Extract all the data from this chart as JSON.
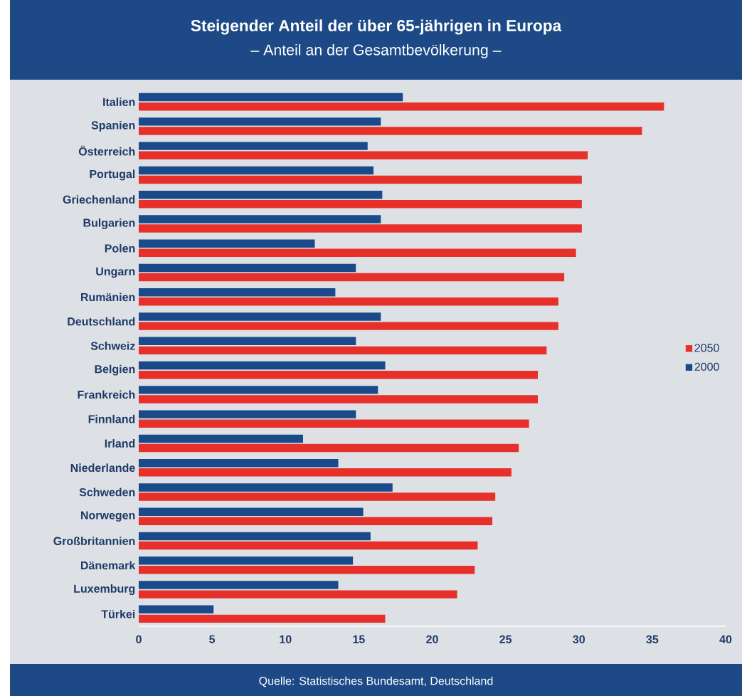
{
  "chart_data": {
    "type": "bar",
    "orientation": "horizontal",
    "title": "Steigender Anteil der über 65-jährigen in Europa",
    "subtitle": "– Anteil an der Gesamtbevölkerung –",
    "categories": [
      "Italien",
      "Spanien",
      "Österreich",
      "Portugal",
      "Griechenland",
      "Bulgarien",
      "Polen",
      "Ungarn",
      "Rumänien",
      "Deutschland",
      "Schweiz",
      "Belgien",
      "Frankreich",
      "Finnland",
      "Irland",
      "Niederlande",
      "Schweden",
      "Norwegen",
      "Großbritannien",
      "Dänemark",
      "Luxemburg",
      "Türkei"
    ],
    "series": [
      {
        "name": "2050",
        "color": "#e8302a",
        "values": [
          35.8,
          34.3,
          30.6,
          30.2,
          30.2,
          30.2,
          29.8,
          29.0,
          28.6,
          28.6,
          27.8,
          27.2,
          27.2,
          26.6,
          25.9,
          25.4,
          24.3,
          24.1,
          23.1,
          22.9,
          21.7,
          16.8
        ]
      },
      {
        "name": "2000",
        "color": "#1a4a8a",
        "values": [
          18.0,
          16.5,
          15.6,
          16.0,
          16.6,
          16.5,
          12.0,
          14.8,
          13.4,
          16.5,
          14.8,
          16.8,
          16.3,
          14.8,
          11.2,
          13.6,
          17.3,
          15.3,
          15.8,
          14.6,
          13.6,
          5.1
        ]
      }
    ],
    "xlim": [
      0,
      40
    ],
    "xticks": [
      0,
      5,
      10,
      15,
      20,
      25,
      30,
      35,
      40
    ],
    "legend": "right",
    "grid": false,
    "annotations": [
      "Quelle: Statistisches Bundesamt, Deutschland"
    ]
  }
}
